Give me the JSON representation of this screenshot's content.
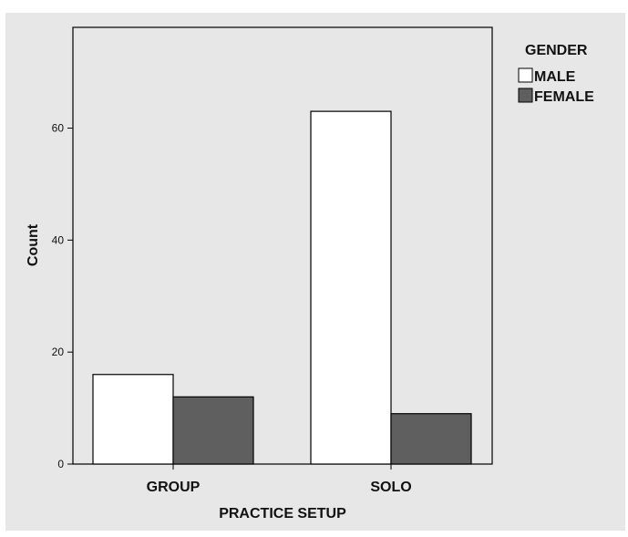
{
  "chart_data": {
    "type": "bar",
    "categories": [
      "GROUP",
      "SOLO"
    ],
    "series": [
      {
        "name": "MALE",
        "values": [
          16,
          63
        ],
        "color": "#ffffff"
      },
      {
        "name": "FEMALE",
        "values": [
          12,
          9
        ],
        "color": "#5f5f5f"
      }
    ],
    "xlabel": "PRACTICE SETUP",
    "ylabel": "Count",
    "ylim": [
      0,
      78
    ],
    "yticks": [
      0,
      20,
      40,
      60
    ],
    "legend_title": "GENDER",
    "legend_position": "top-right",
    "grid": false
  },
  "colors": {
    "panel_background": "#e7e7e8",
    "plot_background": "#e7e7e8",
    "axis": "#000000"
  }
}
